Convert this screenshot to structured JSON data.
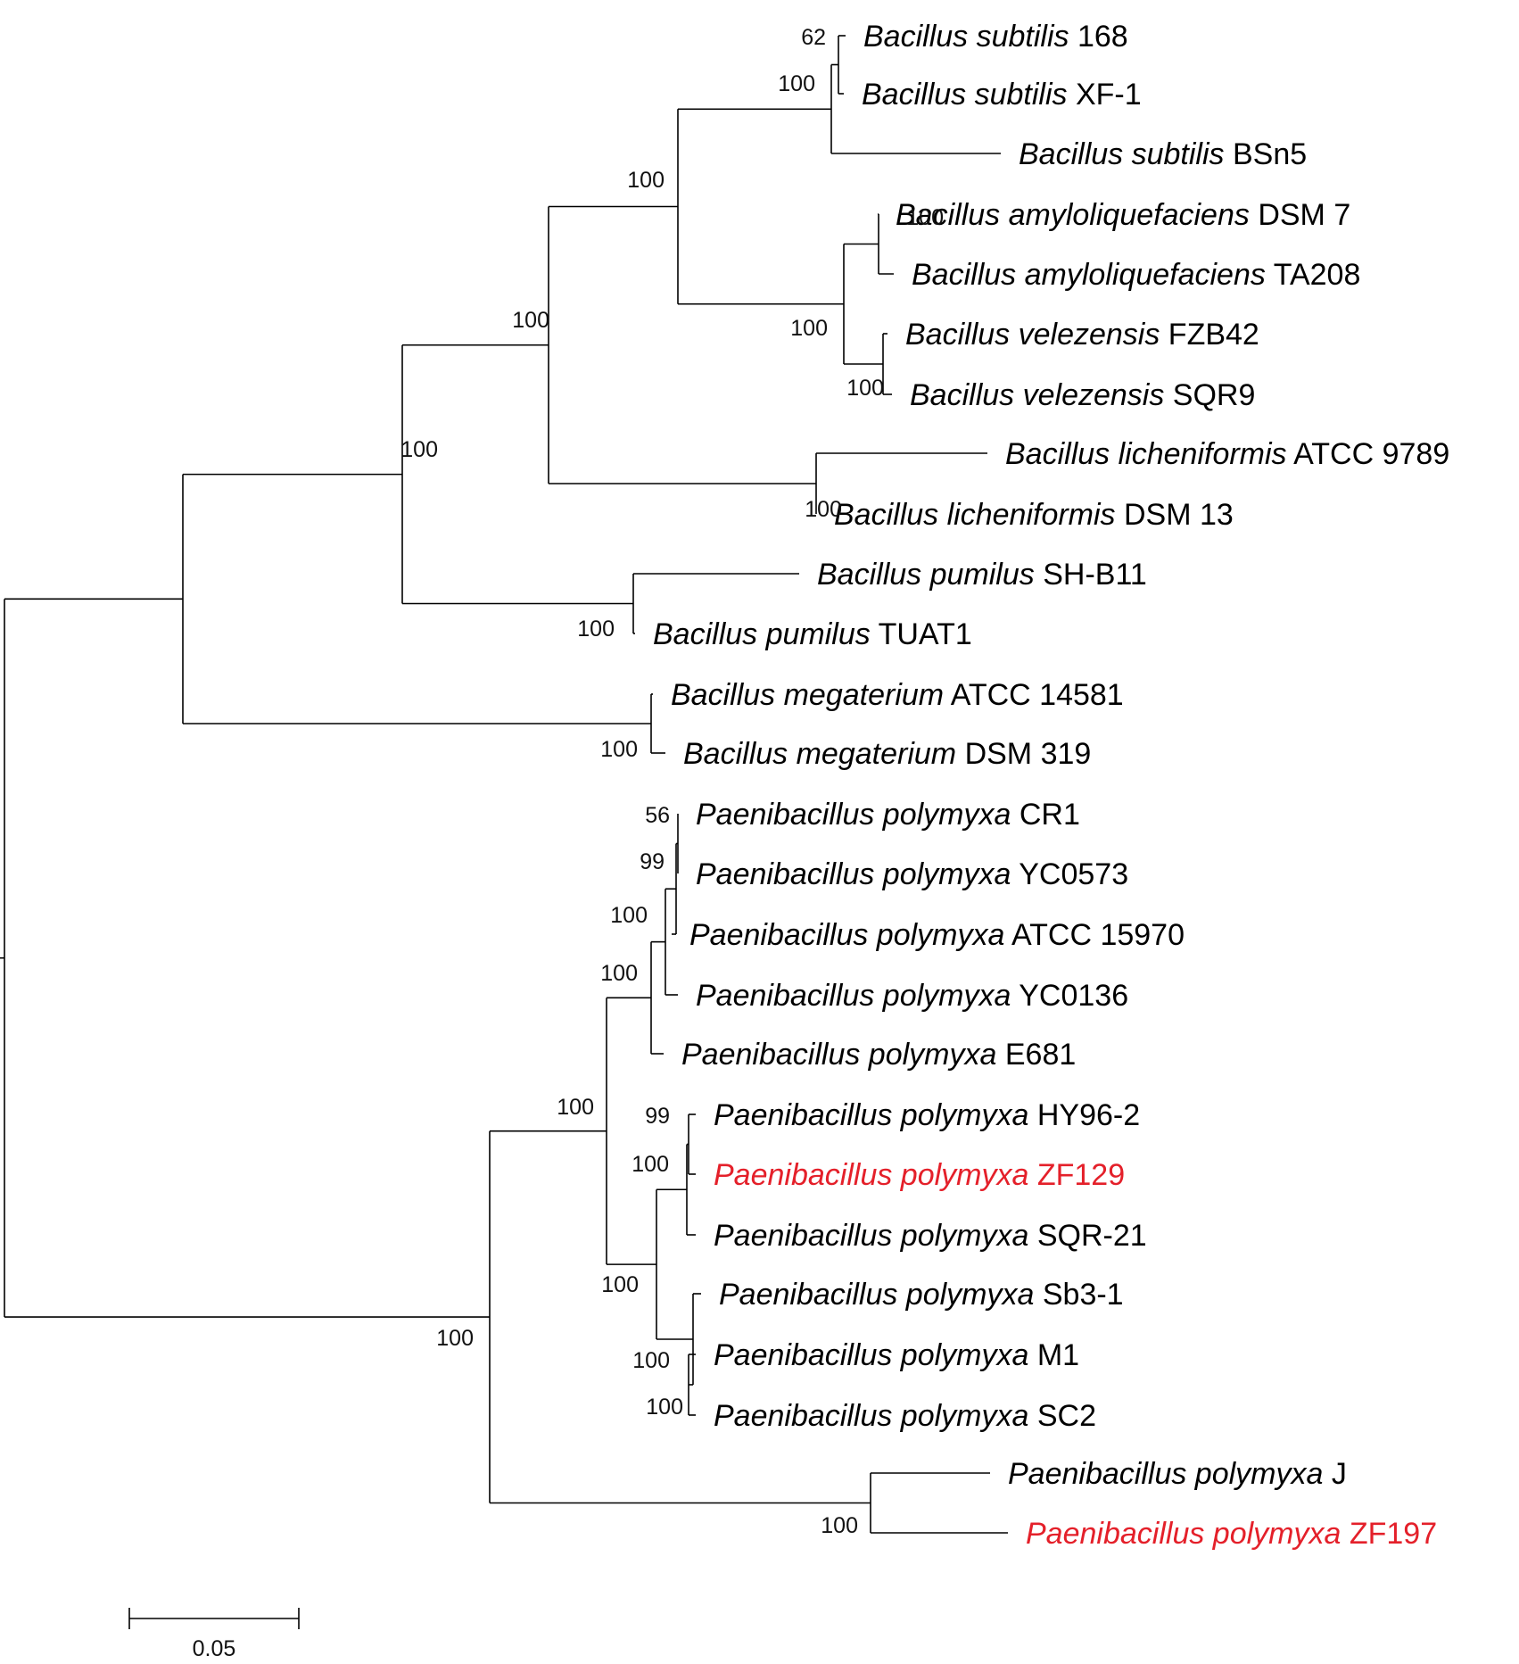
{
  "taxa": [
    {
      "genus": "Bacillus",
      "species": "subtilis",
      "strain": "168",
      "highlight": false
    },
    {
      "genus": "Bacillus",
      "species": "subtilis",
      "strain": "XF-1",
      "highlight": false
    },
    {
      "genus": "Bacillus",
      "species": "subtilis",
      "strain": "BSn5",
      "highlight": false
    },
    {
      "genus": "Bacillus",
      "species": "amyloliquefaciens",
      "strain": "DSM 7",
      "highlight": false
    },
    {
      "genus": "Bacillus",
      "species": "amyloliquefaciens",
      "strain": "TA208",
      "highlight": false
    },
    {
      "genus": "Bacillus",
      "species": "velezensis",
      "strain": "FZB42",
      "highlight": false
    },
    {
      "genus": "Bacillus",
      "species": "velezensis",
      "strain": "SQR9",
      "highlight": false
    },
    {
      "genus": "Bacillus",
      "species": "licheniformis",
      "strain": "ATCC 9789",
      "highlight": false
    },
    {
      "genus": "Bacillus",
      "species": "licheniformis",
      "strain": "DSM 13",
      "highlight": false
    },
    {
      "genus": "Bacillus",
      "species": "pumilus",
      "strain": "SH-B11",
      "highlight": false
    },
    {
      "genus": "Bacillus",
      "species": "pumilus",
      "strain": "TUAT1",
      "highlight": false
    },
    {
      "genus": "Bacillus",
      "species": "megaterium",
      "strain": "ATCC 14581",
      "highlight": false
    },
    {
      "genus": "Bacillus",
      "species": "megaterium",
      "strain": "DSM 319",
      "highlight": false
    },
    {
      "genus": "Paenibacillus",
      "species": "polymyxa",
      "strain": "CR1",
      "highlight": false
    },
    {
      "genus": "Paenibacillus",
      "species": "polymyxa",
      "strain": "YC0573",
      "highlight": false
    },
    {
      "genus": "Paenibacillus",
      "species": "polymyxa",
      "strain": "ATCC 15970",
      "highlight": false
    },
    {
      "genus": "Paenibacillus",
      "species": "polymyxa",
      "strain": "YC0136",
      "highlight": false
    },
    {
      "genus": "Paenibacillus",
      "species": "polymyxa",
      "strain": "E681",
      "highlight": false
    },
    {
      "genus": "Paenibacillus",
      "species": "polymyxa",
      "strain": "HY96-2",
      "highlight": false
    },
    {
      "genus": "Paenibacillus",
      "species": "polymyxa",
      "strain": "ZF129",
      "highlight": true
    },
    {
      "genus": "Paenibacillus",
      "species": "polymyxa",
      "strain": "SQR-21",
      "highlight": false
    },
    {
      "genus": "Paenibacillus",
      "species": "polymyxa",
      "strain": "Sb3-1",
      "highlight": false
    },
    {
      "genus": "Paenibacillus",
      "species": "polymyxa",
      "strain": "M1",
      "highlight": false
    },
    {
      "genus": "Paenibacillus",
      "species": "polymyxa",
      "strain": "SC2",
      "highlight": false
    },
    {
      "genus": "Paenibacillus",
      "species": "polymyxa",
      "strain": "J",
      "highlight": false
    },
    {
      "genus": "Paenibacillus",
      "species": "polymyxa",
      "strain": "ZF197",
      "highlight": true
    }
  ],
  "bootstrap": [
    "62",
    "100",
    "100",
    "100",
    "100",
    "100",
    "100",
    "100",
    "100",
    "100",
    "100",
    "56",
    "99",
    "100",
    "100",
    "100",
    "99",
    "100",
    "100",
    "100",
    "100",
    "100",
    "100"
  ],
  "scale_bar": {
    "label": "0.05"
  },
  "colors": {
    "branch": "#000000",
    "highlight": "#e4202a"
  }
}
